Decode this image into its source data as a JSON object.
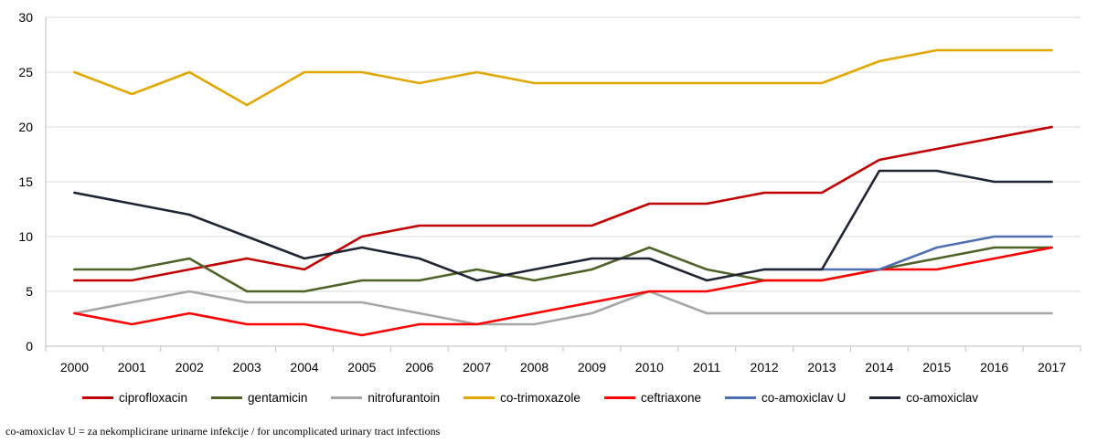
{
  "chart_data": {
    "type": "line",
    "x": [
      "2000",
      "2001",
      "2002",
      "2003",
      "2004",
      "2005",
      "2006",
      "2007",
      "2008",
      "2009",
      "2010",
      "2011",
      "2012",
      "2013",
      "2014",
      "2015",
      "2016",
      "2017"
    ],
    "ylim": [
      0,
      30
    ],
    "yticks": [
      0,
      5,
      10,
      15,
      20,
      25,
      30
    ],
    "grid": "horizontal",
    "legend_position": "bottom",
    "series": [
      {
        "name": "ciprofloxacin",
        "color": "#c00000",
        "values": [
          6,
          6,
          7,
          8,
          7,
          10,
          11,
          11,
          11,
          11,
          13,
          13,
          14,
          14,
          17,
          18,
          19,
          20
        ]
      },
      {
        "name": "gentamicin",
        "color": "#4f6228",
        "values": [
          7,
          7,
          8,
          5,
          5,
          6,
          6,
          7,
          6,
          7,
          9,
          7,
          6,
          6,
          7,
          8,
          9,
          9
        ]
      },
      {
        "name": "nitrofurantoin",
        "color": "#a6a6a6",
        "values": [
          3,
          4,
          5,
          4,
          4,
          4,
          3,
          2,
          2,
          3,
          5,
          3,
          3,
          3,
          3,
          3,
          3,
          3
        ]
      },
      {
        "name": "co-trimoxazole",
        "color": "#e0a800",
        "values": [
          25,
          23,
          25,
          22,
          25,
          25,
          24,
          25,
          24,
          24,
          24,
          24,
          24,
          24,
          26,
          27,
          27,
          27
        ]
      },
      {
        "name": "ceftriaxone",
        "color": "#ff0000",
        "values": [
          3,
          2,
          3,
          2,
          2,
          1,
          2,
          2,
          3,
          4,
          5,
          5,
          6,
          6,
          7,
          7,
          8,
          9
        ]
      },
      {
        "name": "co-amoxiclav U",
        "color": "#4f6fb0",
        "values": [
          null,
          null,
          null,
          null,
          null,
          null,
          null,
          null,
          null,
          null,
          null,
          null,
          7,
          7,
          7,
          9,
          10,
          10
        ]
      },
      {
        "name": "co-amoxiclav",
        "color": "#1f2533",
        "values": [
          14,
          13,
          12,
          10,
          8,
          9,
          8,
          6,
          7,
          8,
          8,
          6,
          7,
          7,
          16,
          16,
          15,
          15
        ]
      }
    ]
  },
  "footnote": "co-amoxiclav U = za nekomplicirane urinarne infekcije / for uncomplicated urinary tract infections"
}
